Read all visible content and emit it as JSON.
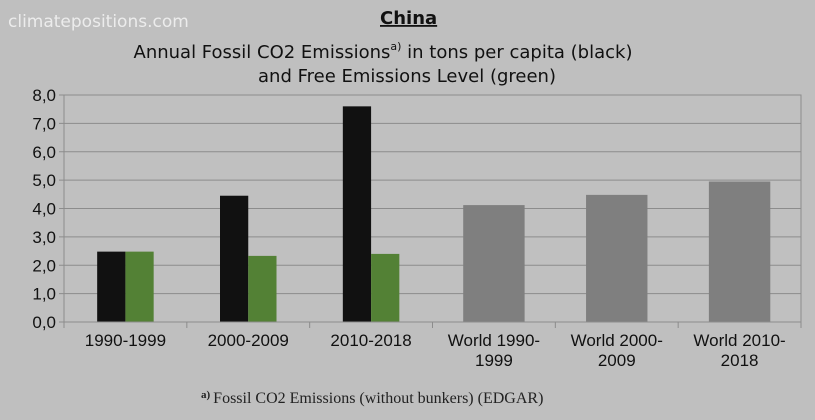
{
  "watermark": "climatepositions.com",
  "chart_data": {
    "type": "bar",
    "title": "China",
    "subtitle_line1": "Annual Fossil CO2 Emissions",
    "subtitle_sup": "a)",
    "subtitle_line1_rest": " in tons per capita (black)",
    "subtitle_line2": "and Free Emissions Level (green)",
    "categories": [
      [
        "1990-1999"
      ],
      [
        "2000-2009"
      ],
      [
        "2010-2018"
      ],
      [
        "World 1990-",
        "1999"
      ],
      [
        "World 2000-",
        "2009"
      ],
      [
        "World 2010-",
        "2018"
      ]
    ],
    "series": [
      {
        "values": [
          2.48,
          4.45,
          7.6,
          null,
          null,
          null
        ],
        "color": "#111111"
      },
      {
        "values": [
          2.48,
          2.33,
          2.4,
          null,
          null,
          null
        ],
        "color": "#538135"
      },
      {
        "values": [
          null,
          null,
          null,
          4.12,
          4.48,
          4.95
        ],
        "color": "#7f7f7f"
      }
    ],
    "ylim": [
      0,
      8
    ],
    "yticks": [
      "0,0",
      "1,0",
      "2,0",
      "3,0",
      "4,0",
      "5,0",
      "6,0",
      "7,0",
      "8,0"
    ],
    "grid": true,
    "footnote_sup": "a)",
    "footnote": "Fossil CO2 Emissions (without bunkers) (EDGAR)"
  }
}
